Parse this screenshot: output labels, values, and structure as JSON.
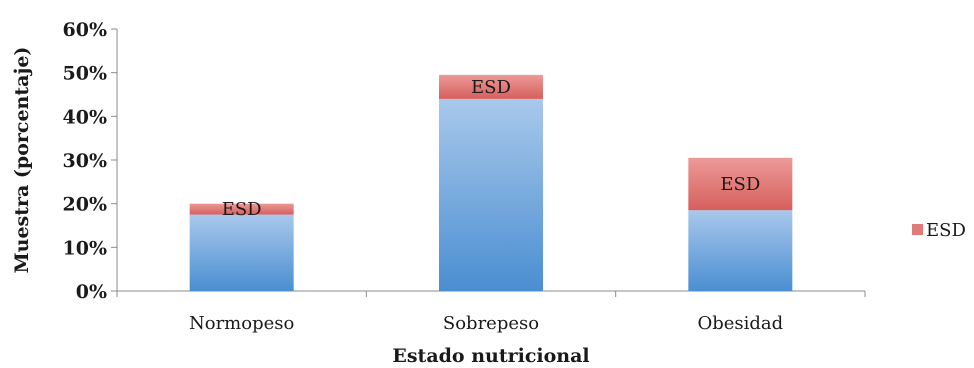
{
  "chart_data": {
    "type": "bar",
    "stacked": true,
    "categories": [
      "Normopeso",
      "Sobrepeso",
      "Obesidad"
    ],
    "series": [
      {
        "values": [
          17.5,
          44,
          18.5
        ],
        "color": "#5b9bd5"
      },
      {
        "name": "ESD",
        "values": [
          2.5,
          5.5,
          12
        ],
        "color": "#e07b7a"
      }
    ],
    "data_labels": [
      "ESD",
      "ESD",
      "ESD"
    ],
    "xlabel": "Estado nutricional",
    "ylabel": "Muestra (porcentaje)",
    "ylim": [
      0,
      60
    ],
    "yticks": [
      "0%",
      "10%",
      "20%",
      "30%",
      "40%",
      "50%",
      "60%"
    ],
    "grid": false,
    "legend": {
      "position": "right",
      "entries": [
        "ESD"
      ]
    }
  }
}
